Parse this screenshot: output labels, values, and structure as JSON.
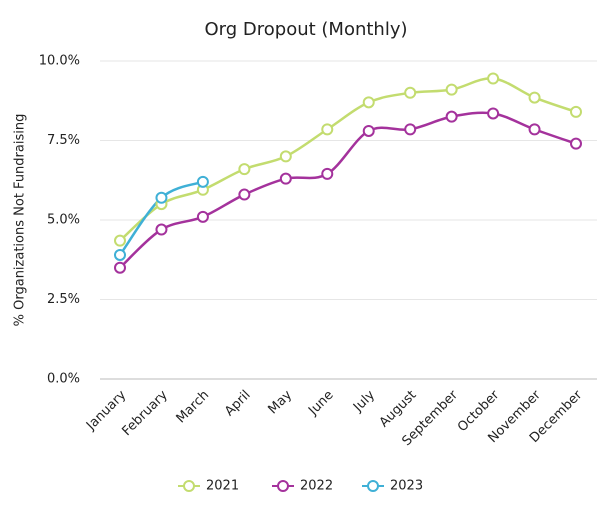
{
  "chart_data": {
    "type": "line",
    "title": "Org Dropout (Monthly)",
    "y_label": "% Organizations Not Fundraising",
    "categories": [
      "January",
      "February",
      "March",
      "April",
      "May",
      "June",
      "July",
      "August",
      "September",
      "October",
      "November",
      "December"
    ],
    "series": [
      {
        "name": "2021",
        "color": "#c3dc6f",
        "values": [
          4.35,
          5.5,
          5.95,
          6.6,
          7.0,
          7.85,
          8.7,
          9.0,
          9.1,
          9.45,
          8.85,
          8.4
        ]
      },
      {
        "name": "2022",
        "color": "#a4329c",
        "values": [
          3.5,
          4.7,
          5.1,
          5.8,
          6.3,
          6.45,
          7.8,
          7.85,
          8.25,
          8.35,
          7.85,
          7.4
        ]
      },
      {
        "name": "2023",
        "color": "#3fb0d6",
        "values": [
          3.9,
          5.7,
          6.2,
          null,
          null,
          null,
          null,
          null,
          null,
          null,
          null,
          null
        ]
      }
    ],
    "ylim": [
      0,
      10
    ],
    "yticks": [
      {
        "value": 0,
        "label": "0.0%"
      },
      {
        "value": 2.5,
        "label": "2.5%"
      },
      {
        "value": 5,
        "label": "5.0%"
      },
      {
        "value": 7.5,
        "label": "7.5%"
      },
      {
        "value": 10,
        "label": "10.0%"
      }
    ],
    "grid": true,
    "legend": "bottom"
  }
}
